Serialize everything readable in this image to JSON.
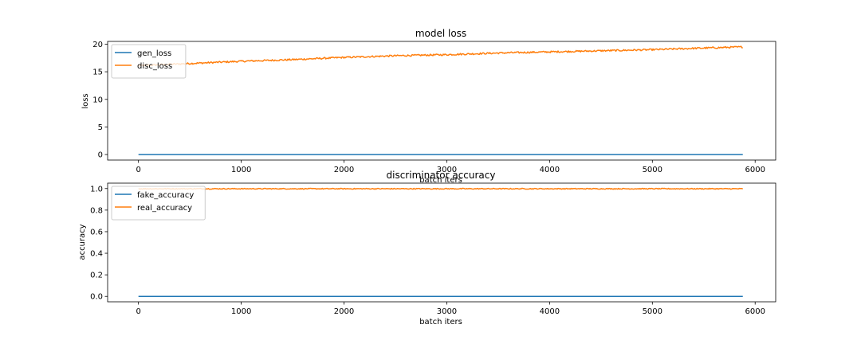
{
  "colors": {
    "series1": "#1f77b4",
    "series2": "#ff7f0e",
    "axis": "#000000",
    "background": "#ffffff"
  },
  "chart_data": [
    {
      "type": "line",
      "title": "model loss",
      "xlabel": "batch iters",
      "ylabel": "loss",
      "xlim": [
        -300,
        6200
      ],
      "ylim": [
        -1,
        20.5
      ],
      "xticks": [
        0,
        1000,
        2000,
        3000,
        4000,
        5000,
        6000
      ],
      "xtick_labels": [
        "0",
        "1000",
        "2000",
        "3000",
        "4000",
        "5000",
        "6000"
      ],
      "yticks": [
        0,
        5,
        10,
        15,
        20
      ],
      "ytick_labels": [
        "0",
        "5",
        "10",
        "15",
        "20"
      ],
      "grid": false,
      "legend_position": "upper-left",
      "series": [
        {
          "name": "gen_loss",
          "color": "#1f77b4",
          "noise": 0,
          "x": [
            0,
            5880
          ],
          "y": [
            0,
            0
          ]
        },
        {
          "name": "disc_loss",
          "color": "#ff7f0e",
          "noise": 0.15,
          "x": [
            0,
            500,
            1000,
            1500,
            2000,
            2500,
            3000,
            3500,
            4000,
            4500,
            5000,
            5500,
            5880
          ],
          "y": [
            16.1,
            16.5,
            16.9,
            17.2,
            17.6,
            17.9,
            18.1,
            18.4,
            18.6,
            18.8,
            19.0,
            19.3,
            19.5
          ]
        }
      ]
    },
    {
      "type": "line",
      "title": "discriminator accuracy",
      "xlabel": "batch iters",
      "ylabel": "accuracy",
      "xlim": [
        -300,
        6200
      ],
      "ylim": [
        -0.05,
        1.05
      ],
      "xticks": [
        0,
        1000,
        2000,
        3000,
        4000,
        5000,
        6000
      ],
      "xtick_labels": [
        "0",
        "1000",
        "2000",
        "3000",
        "4000",
        "5000",
        "6000"
      ],
      "yticks": [
        0,
        0.2,
        0.4,
        0.6,
        0.8,
        1.0
      ],
      "ytick_labels": [
        "0.0",
        "0.2",
        "0.4",
        "0.6",
        "0.8",
        "1.0"
      ],
      "grid": false,
      "legend_position": "upper-left",
      "series": [
        {
          "name": "fake_accuracy",
          "color": "#1f77b4",
          "noise": 0,
          "x": [
            0,
            5880
          ],
          "y": [
            0,
            0
          ]
        },
        {
          "name": "real_accuracy",
          "color": "#ff7f0e",
          "noise": 0.004,
          "x": [
            0,
            5880
          ],
          "y": [
            0.998,
            0.998
          ]
        }
      ]
    }
  ]
}
